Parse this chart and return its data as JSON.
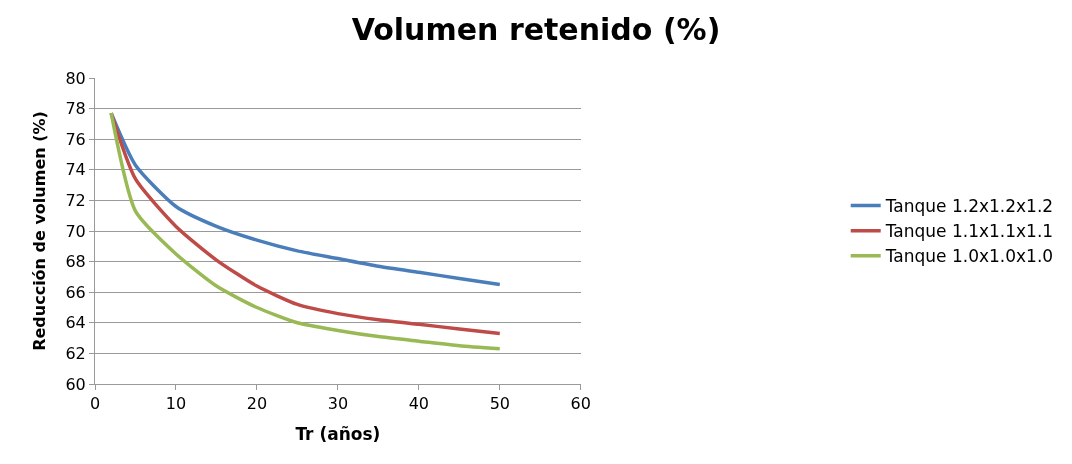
{
  "chart_data": {
    "type": "line",
    "title": "Volumen retenido (%)",
    "xlabel": "Tr (años)",
    "ylabel": "Reducción de volumen (%)",
    "x": [
      2,
      5,
      10,
      15,
      20,
      25,
      30,
      35,
      40,
      45,
      50
    ],
    "series": [
      {
        "name": "Tanque 1.2x1.2x1.2",
        "color": "#4a7ebb",
        "values": [
          77.7,
          74.3,
          71.6,
          70.3,
          69.4,
          68.7,
          68.2,
          67.7,
          67.3,
          66.9,
          66.5
        ]
      },
      {
        "name": "Tanque 1.1x1.1x1.1",
        "color": "#be4b48",
        "values": [
          77.7,
          73.4,
          70.3,
          68.1,
          66.4,
          65.2,
          64.6,
          64.2,
          63.9,
          63.6,
          63.3
        ]
      },
      {
        "name": "Tanque 1.0x1.0x1.0",
        "color": "#98b954",
        "values": [
          77.7,
          71.3,
          68.5,
          66.4,
          65.0,
          64.0,
          63.5,
          63.1,
          62.8,
          62.5,
          62.3
        ]
      }
    ],
    "xlim": [
      0,
      60
    ],
    "xticks": [
      0,
      10,
      20,
      30,
      40,
      50,
      60
    ],
    "ylim": [
      60,
      80
    ],
    "yticks": [
      60,
      62,
      64,
      66,
      68,
      70,
      72,
      74,
      76,
      78,
      80
    ],
    "grid": "y",
    "legend": "right",
    "marker": "none",
    "line_style": "solid"
  }
}
